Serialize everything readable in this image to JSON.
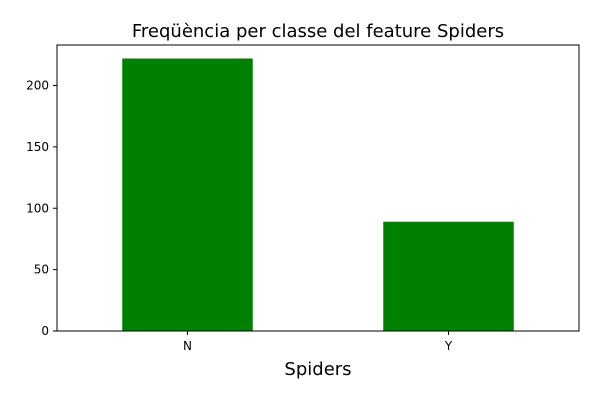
{
  "chart_data": {
    "type": "bar",
    "title": "Freqüència per classe del feature Spiders",
    "xlabel": "Spiders",
    "ylabel": "",
    "categories": [
      "N",
      "Y"
    ],
    "values": [
      222,
      89
    ],
    "ylim": [
      0,
      233
    ],
    "yticks": [
      0,
      50,
      100,
      150,
      200
    ],
    "bar_color": "#008000",
    "grid": false,
    "legend": "none"
  }
}
